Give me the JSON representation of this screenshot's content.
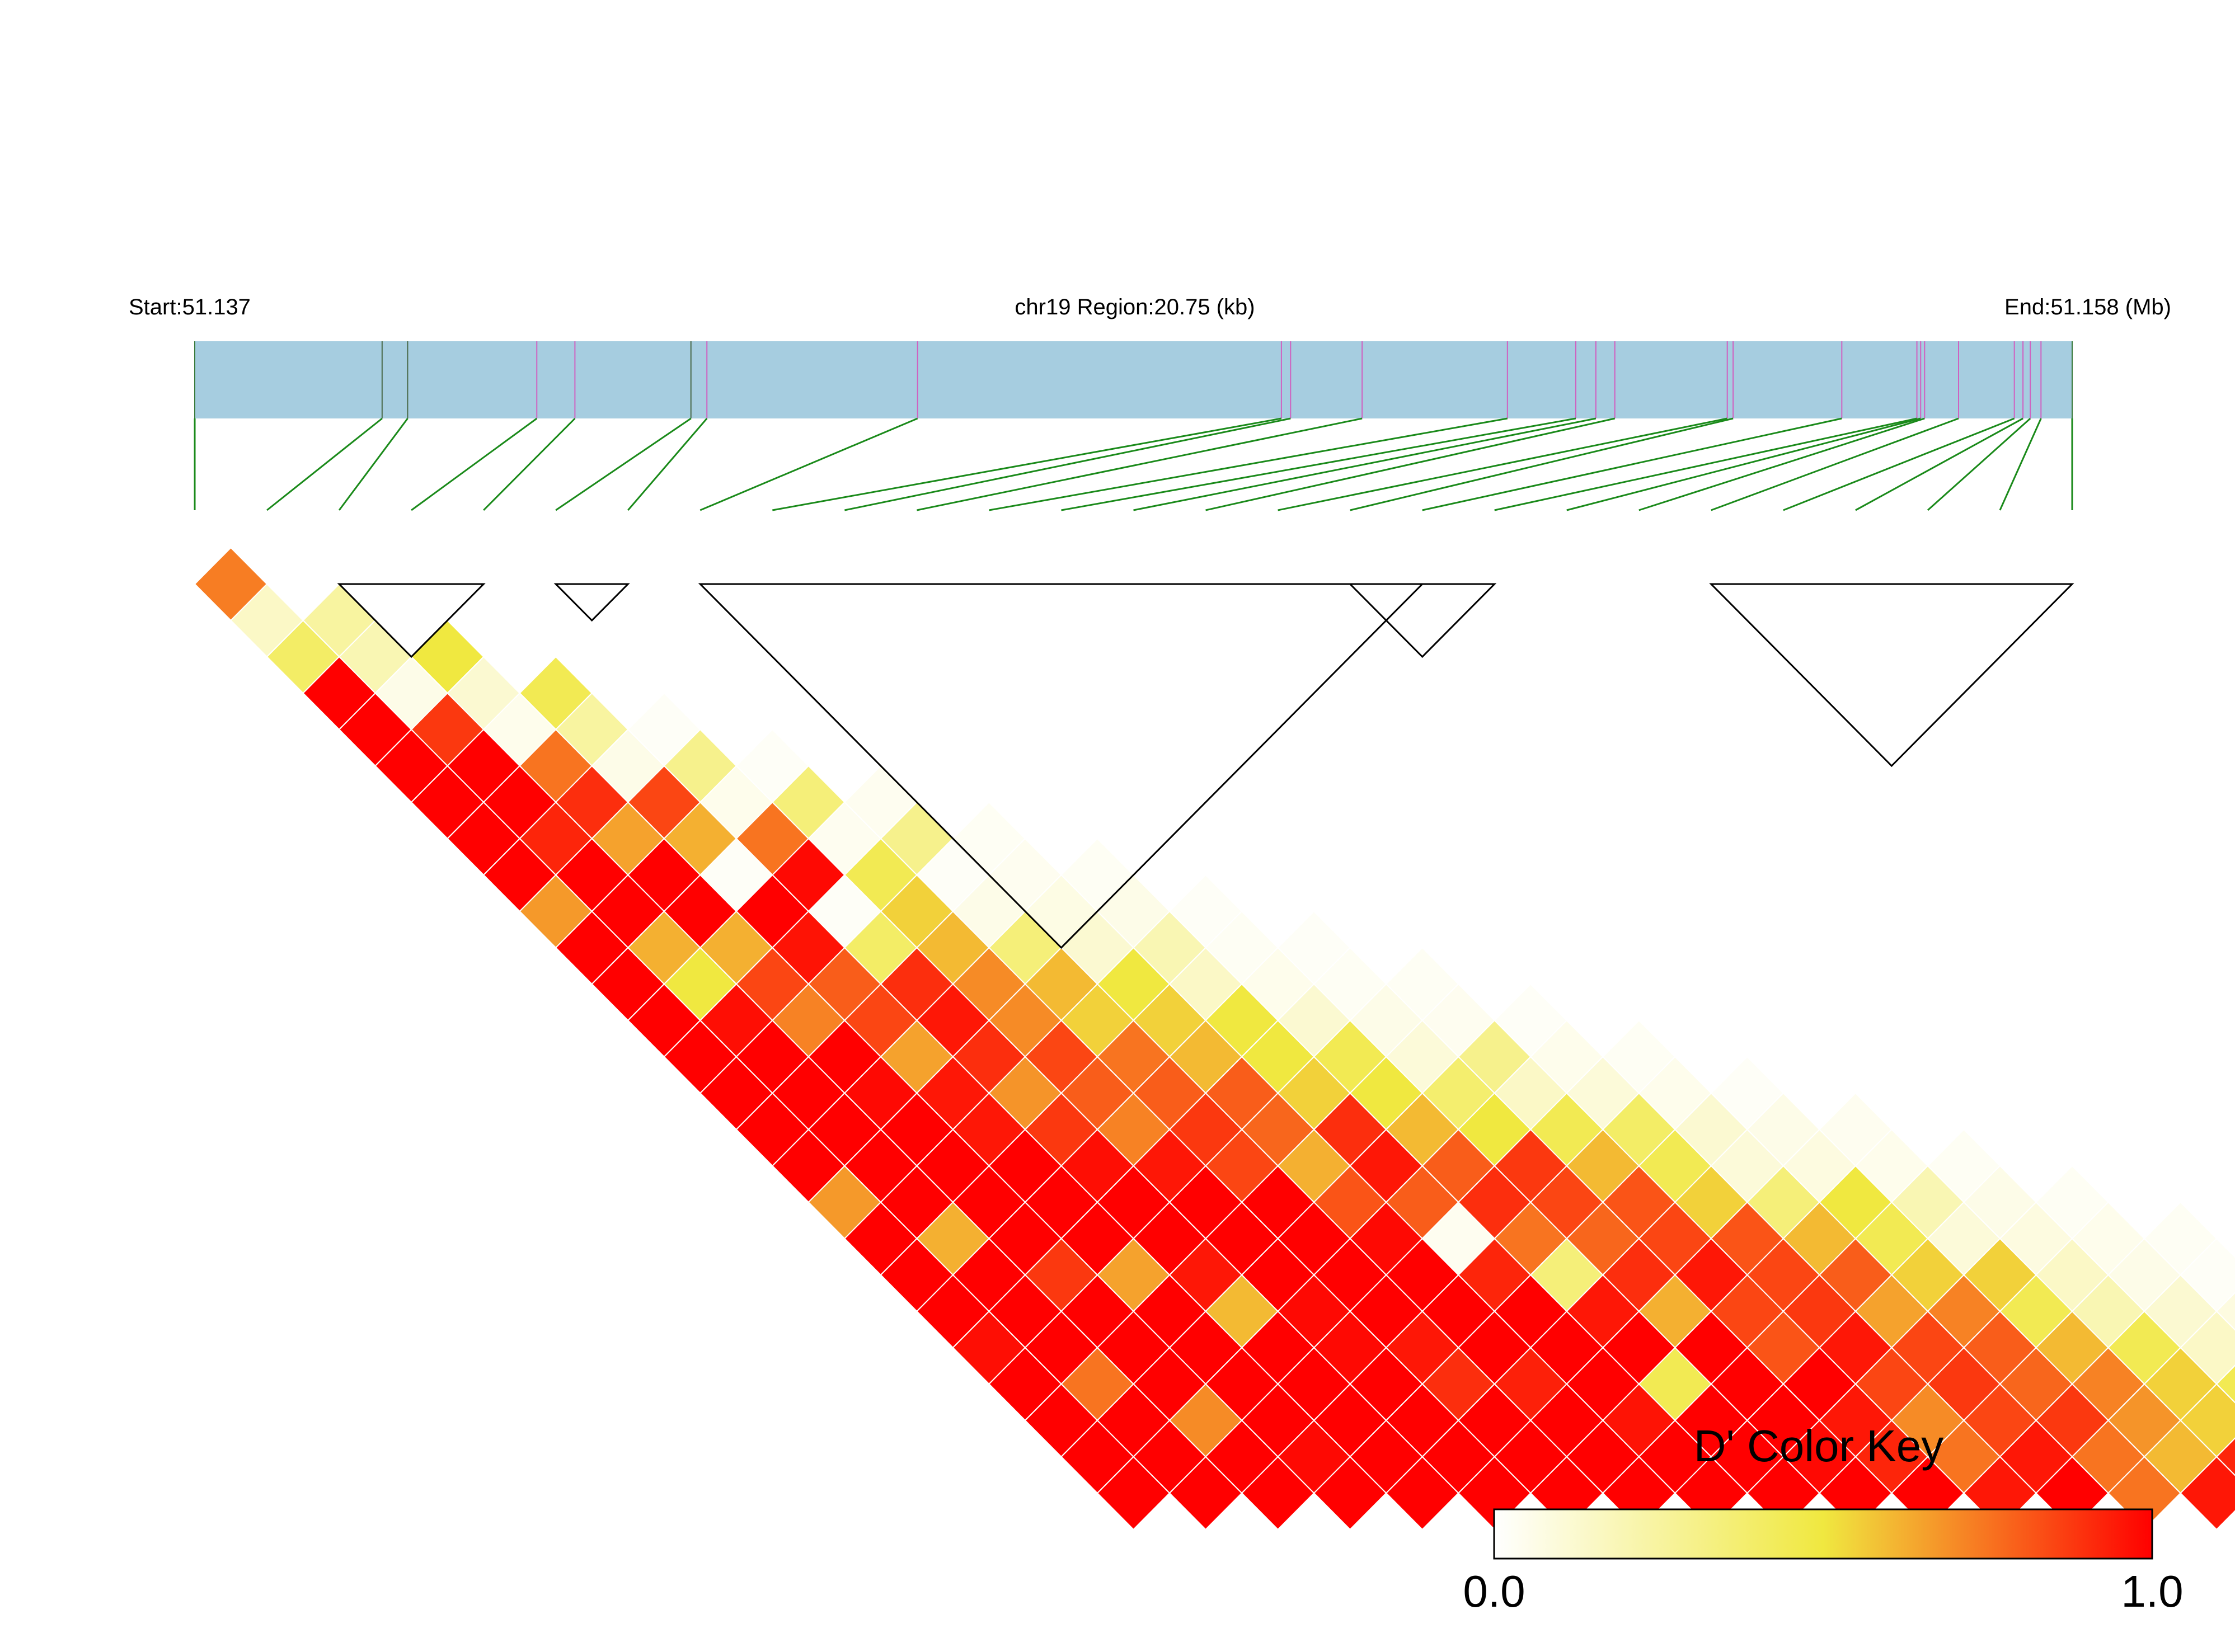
{
  "chart_data": {
    "type": "heatmap",
    "subtype": "linkage-disequilibrium-triangle",
    "metric": "D'",
    "header": {
      "start_label": "Start:51.137",
      "region_label": "chr19 Region:20.75 (kb)",
      "end_label": "End:51.158 (Mb)"
    },
    "region_start_mb": 51.137,
    "region_end_mb": 51.158,
    "region_length_kb": 20.75,
    "snp_count": 27,
    "snp_positions_frac": [
      0,
      0.0998,
      0.1134,
      0.1822,
      0.2025,
      0.2643,
      0.2728,
      0.385,
      0.5788,
      0.5837,
      0.6218,
      0.6992,
      0.7356,
      0.7463,
      0.7564,
      0.8163,
      0.8194,
      0.8773,
      0.9173,
      0.9193,
      0.9214,
      0.9395,
      0.9692,
      0.9738,
      0.9777,
      0.9834,
      1.0
    ],
    "snp_marker_colors": [
      "#3a7a3a",
      "#4a6a4a",
      "#4a6a4a",
      "#d060c0",
      "#d060c0",
      "#4a6a4a",
      "#d060c0",
      "#d060c0",
      "#d060c0",
      "#d060c0",
      "#d060c0",
      "#d060c0",
      "#d060c0",
      "#d060c0",
      "#d060c0",
      "#d060c0",
      "#d060c0",
      "#d060c0",
      "#d060c0",
      "#d060c0",
      "#d060c0",
      "#d060c0",
      "#d060c0",
      "#d060c0",
      "#d060c0",
      "#d060c0",
      "#3a7a3a"
    ],
    "d_prime_matrix": [
      [
        0.73
      ],
      [
        0.15,
        0.25
      ],
      [
        0.4,
        0.2,
        0.5
      ],
      [
        1.0,
        0.06,
        0.12,
        0.45
      ],
      [
        1.0,
        0.88,
        0.05,
        0.25,
        0.02
      ],
      [
        1.0,
        1.0,
        0.75,
        0.06,
        0.3,
        0.02
      ],
      [
        1.0,
        1.0,
        0.9,
        0.85,
        0.05,
        0.35,
        0.04
      ],
      [
        1.0,
        0.92,
        0.65,
        0.62,
        0.75,
        0.04,
        0.3,
        0.03
      ],
      [
        1.0,
        1.0,
        1.0,
        0.02,
        0.98,
        0.45,
        0.02,
        0.04,
        0.03
      ],
      [
        0.67,
        1.0,
        1.0,
        1.0,
        0.02,
        0.55,
        0.06,
        0.07,
        0.06,
        0.02
      ],
      [
        1.0,
        0.62,
        0.62,
        0.96,
        0.4,
        0.6,
        0.35,
        0.12,
        0.2,
        0.03,
        0.02
      ],
      [
        1.0,
        0.5,
        0.85,
        0.8,
        0.9,
        0.7,
        0.6,
        0.5,
        0.15,
        0.05,
        0.03,
        0.03
      ],
      [
        1.0,
        0.97,
        0.72,
        0.85,
        0.95,
        0.7,
        0.55,
        0.55,
        0.5,
        0.12,
        0.06,
        0.04,
        0.02
      ],
      [
        1.0,
        1.0,
        1.0,
        0.65,
        0.9,
        0.85,
        0.75,
        0.6,
        0.5,
        0.45,
        0.1,
        0.3,
        0.05,
        0.03
      ],
      [
        1.0,
        1.0,
        0.98,
        0.95,
        0.68,
        0.8,
        0.8,
        0.8,
        0.55,
        0.5,
        0.38,
        0.15,
        0.1,
        0.05,
        0.02
      ],
      [
        1.0,
        1.0,
        1.0,
        0.95,
        0.88,
        0.72,
        0.88,
        0.78,
        0.9,
        0.6,
        0.5,
        0.45,
        0.4,
        0.12,
        0.06,
        0.04
      ],
      [
        1.0,
        1.0,
        1.0,
        1.0,
        0.97,
        0.95,
        0.85,
        0.62,
        0.95,
        0.8,
        0.88,
        0.6,
        0.45,
        0.1,
        0.08,
        0.05,
        0.03
      ],
      [
        0.67,
        1.0,
        1.0,
        1.0,
        1.0,
        1.0,
        1.0,
        0.82,
        0.8,
        0.9,
        0.85,
        0.82,
        0.55,
        0.35,
        0.5,
        0.2,
        0.06,
        0.03
      ],
      [
        1.0,
        0.62,
        1.0,
        1.0,
        1.0,
        1.0,
        1.0,
        0.98,
        0.04,
        0.75,
        0.78,
        0.85,
        0.82,
        0.6,
        0.45,
        0.1,
        0.08,
        0.05,
        0.03
      ],
      [
        1.0,
        1.0,
        0.88,
        0.65,
        0.95,
        1.0,
        1.0,
        1.0,
        0.92,
        0.35,
        0.9,
        0.95,
        0.85,
        0.8,
        0.55,
        0.55,
        0.15,
        0.06,
        0.02,
        0.02
      ],
      [
        1.0,
        1.0,
        1.0,
        1.0,
        0.6,
        0.98,
        1.0,
        1.0,
        1.0,
        0.95,
        0.62,
        0.85,
        0.88,
        0.65,
        0.72,
        0.45,
        0.2,
        0.12,
        0.08,
        0.03,
        0.02
      ],
      [
        0.97,
        1.0,
        1.0,
        1.0,
        1.0,
        0.98,
        0.95,
        1.0,
        1.0,
        1.0,
        1.0,
        0.82,
        0.95,
        0.85,
        0.8,
        0.6,
        0.45,
        0.15,
        0.1,
        0.06,
        0.04,
        0.02
      ],
      [
        1.0,
        0.75,
        1.0,
        1.0,
        1.0,
        1.0,
        0.9,
        0.93,
        1.0,
        0.45,
        1.0,
        1.0,
        0.85,
        0.88,
        0.78,
        0.72,
        0.55,
        0.45,
        0.12,
        0.08,
        0.05,
        0.03,
        0.02
      ],
      [
        1.0,
        1.0,
        0.7,
        1.0,
        1.0,
        1.0,
        1.0,
        1.0,
        0.96,
        1.0,
        1.0,
        0.95,
        0.7,
        0.85,
        0.88,
        0.68,
        0.55,
        0.5,
        0.45,
        0.1,
        0.05,
        0.03,
        0.02,
        0.02
      ],
      [
        1.0,
        1.0,
        1.0,
        0.98,
        1.0,
        1.0,
        1.0,
        1.0,
        1.0,
        1.0,
        0.98,
        0.92,
        0.75,
        0.95,
        0.75,
        0.6,
        0.92,
        0.45,
        0.4,
        0.15,
        0.03,
        0.05,
        0.02,
        0.02,
        0.02
      ],
      [
        1.0,
        1.0,
        1.0,
        1.0,
        1.0,
        1.0,
        1.0,
        1.0,
        1.0,
        1.0,
        1.0,
        1.0,
        0.95,
        1.0,
        0.75,
        0.95,
        0.9,
        0.55,
        0.4,
        0.45,
        0.05,
        0.15,
        0.12,
        0.04,
        0.02,
        0.02
      ]
    ],
    "blocks": [
      [
        3,
        5
      ],
      [
        6,
        7
      ],
      [
        8,
        18
      ],
      [
        17,
        19
      ],
      [
        22,
        27
      ]
    ],
    "color_key": {
      "title": "D' Color Key",
      "min_label": "0.0",
      "max_label": "1.0",
      "stops": [
        "#ffffff",
        "#f0e840",
        "#ff0000"
      ]
    },
    "colors": {
      "gene_bar": "#a6cde0",
      "connector": "#1a8a1a",
      "cell_border": "#ffffff",
      "block_outline": "#000000"
    }
  }
}
